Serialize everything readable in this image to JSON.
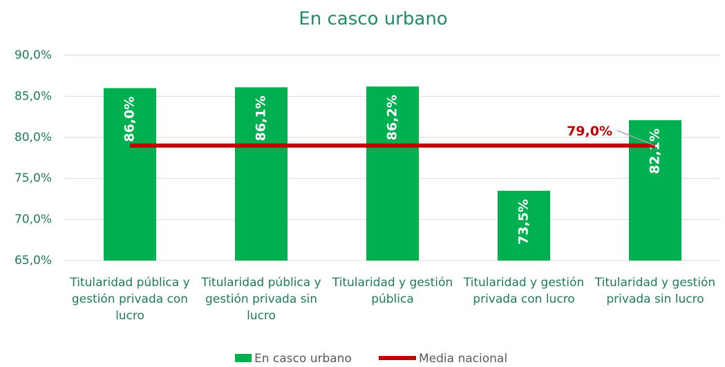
{
  "chart_data": {
    "type": "bar",
    "title": "En casco urbano",
    "categories": [
      "Titularidad pública y gestión privada con lucro",
      "Titularidad pública y gestión privada sin lucro",
      "Titularidad y gestión pública",
      "Titularidad y gestión privada con lucro",
      "Titularidad y gestión privada sin lucro"
    ],
    "series": [
      {
        "name": "En casco urbano",
        "type": "bar",
        "color": "#00b050",
        "values": [
          86.0,
          86.1,
          86.2,
          73.5,
          82.1
        ],
        "value_labels": [
          "86,0%",
          "86,1%",
          "86,2%",
          "73,5%",
          "82,1%"
        ]
      },
      {
        "name": "Media nacional",
        "type": "line",
        "color": "#c00000",
        "values": [
          79.0,
          79.0,
          79.0,
          79.0,
          79.0
        ],
        "value_labels": [
          null,
          null,
          null,
          null,
          "79,0%"
        ]
      }
    ],
    "ylim": [
      65,
      90
    ],
    "yticks": [
      {
        "value": 65,
        "label": "65,0%"
      },
      {
        "value": 70,
        "label": "70,0%"
      },
      {
        "value": 75,
        "label": "75,0%"
      },
      {
        "value": 80,
        "label": "80,0%"
      },
      {
        "value": 85,
        "label": "85,0%"
      },
      {
        "value": 90,
        "label": "90,0%"
      }
    ],
    "grid": true,
    "legend": "bottom"
  }
}
